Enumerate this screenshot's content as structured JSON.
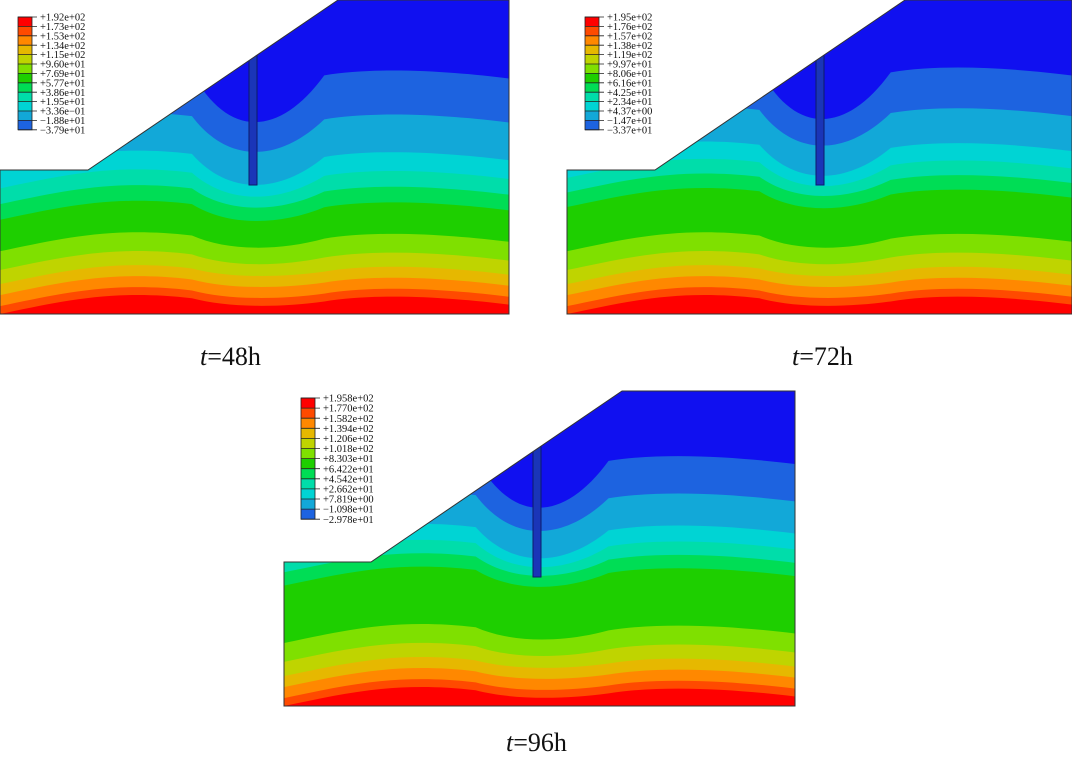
{
  "colors": {
    "scale": [
      "#ff0000",
      "#ff4a00",
      "#ff8800",
      "#e6b800",
      "#bfd400",
      "#7fe000",
      "#1ecf00",
      "#00dd55",
      "#00ddaa",
      "#00d4d4",
      "#12a8d8",
      "#1d63e0",
      "#1010f0"
    ],
    "hole": "#1a35b8"
  },
  "panels": [
    {
      "caption_var": "t",
      "caption_rest": "=48h",
      "legend": [
        "+1.92e+02",
        "+1.73e+02",
        "+1.53e+02",
        "+1.34e+02",
        "+1.15e+02",
        "+9.60e+01",
        "+7.69e+01",
        "+5.77e+01",
        "+3.86e+01",
        "+1.95e+01",
        "+3.36e−01",
        "−1.88e+01",
        "−3.79e+01"
      ]
    },
    {
      "caption_var": "t",
      "caption_rest": "=72h",
      "legend": [
        "+1.95e+02",
        "+1.76e+02",
        "+1.57e+02",
        "+1.38e+02",
        "+1.19e+02",
        "+9.97e+01",
        "+8.06e+01",
        "+6.16e+01",
        "+4.25e+01",
        "+2.34e+01",
        "+4.37e+00",
        "−1.47e+01",
        "−3.37e+01"
      ]
    },
    {
      "caption_var": "t",
      "caption_rest": "=96h",
      "legend": [
        "+1.958e+02",
        "+1.770e+02",
        "+1.582e+02",
        "+1.394e+02",
        "+1.206e+02",
        "+1.018e+02",
        "+8.303e+01",
        "+6.422e+01",
        "+4.542e+01",
        "+2.662e+01",
        "+7.819e+00",
        "−1.098e+01",
        "−2.978e+01"
      ]
    }
  ]
}
